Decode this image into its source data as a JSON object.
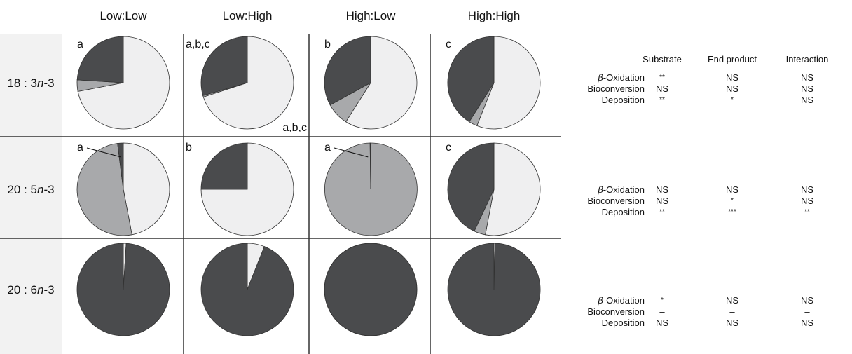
{
  "chart_data": {
    "type": "pie",
    "colors": {
      "dark": "#4a4b4d",
      "mid": "#a8a9ab",
      "light": "#efeff0",
      "line": "#333333"
    },
    "columns": [
      "Low:Low",
      "Low:High",
      "High:Low",
      "High:High"
    ],
    "rows": [
      {
        "label_pre": "18 : 3",
        "label_em": "n",
        "label_post": "-3",
        "pies": [
          {
            "letter": "a",
            "values": {
              "light": 72,
              "mid": 4,
              "dark": 24
            }
          },
          {
            "letter": "a,b,c",
            "extra_letter": "a,b,c",
            "values": {
              "light": 70,
              "mid": 0.5,
              "dark": 29.5
            }
          },
          {
            "letter": "b",
            "values": {
              "light": 59,
              "mid": 8,
              "dark": 33
            }
          },
          {
            "letter": "c",
            "values": {
              "light": 56,
              "mid": 3,
              "dark": 41
            }
          }
        ]
      },
      {
        "label_pre": "20 : 5",
        "label_em": "n",
        "label_post": "-3",
        "pies": [
          {
            "letter": "a",
            "leader": true,
            "values": {
              "light": 47,
              "mid": 51,
              "dark": 2
            }
          },
          {
            "letter": "b",
            "values": {
              "light": 75,
              "mid": 0,
              "dark": 25
            }
          },
          {
            "letter": "a",
            "leader": true,
            "values": {
              "light": 0,
              "mid": 99.8,
              "dark": 0.2
            }
          },
          {
            "letter": "c",
            "values": {
              "light": 53,
              "mid": 4,
              "dark": 43
            }
          }
        ]
      },
      {
        "label_pre": "20 : 6",
        "label_em": "n",
        "label_post": "-3",
        "pies": [
          {
            "letter": "",
            "values": {
              "light": 1,
              "mid": 0,
              "dark": 99
            }
          },
          {
            "letter": "",
            "values": {
              "light": 6,
              "mid": 0,
              "dark": 94
            }
          },
          {
            "letter": "",
            "values": {
              "light": 0,
              "mid": 0,
              "dark": 100
            }
          },
          {
            "letter": "",
            "values": {
              "light": 0.4,
              "mid": 0,
              "dark": 99.6
            }
          }
        ]
      }
    ]
  },
  "stats": {
    "headers": [
      "Substrate",
      "End product",
      "Interaction"
    ],
    "blocks": [
      [
        {
          "greek": "β",
          "label": "-Oxidation",
          "values": [
            "**",
            "NS",
            "NS"
          ]
        },
        {
          "greek": "",
          "label": "Bioconversion",
          "values": [
            "NS",
            "NS",
            "NS"
          ]
        },
        {
          "greek": "",
          "label": "Deposition",
          "values": [
            "**",
            "*",
            "NS"
          ]
        }
      ],
      [
        {
          "greek": "β",
          "label": "-Oxidation",
          "values": [
            "NS",
            "NS",
            "NS"
          ]
        },
        {
          "greek": "",
          "label": "Bioconversion",
          "values": [
            "NS",
            "*",
            "NS"
          ]
        },
        {
          "greek": "",
          "label": "Deposition",
          "values": [
            "**",
            "***",
            "**"
          ]
        }
      ],
      [
        {
          "greek": "β",
          "label": "-Oxidation",
          "values": [
            "*",
            "NS",
            "NS"
          ]
        },
        {
          "greek": "",
          "label": "Bioconversion",
          "values": [
            "–",
            "–",
            "–"
          ]
        },
        {
          "greek": "",
          "label": "Deposition",
          "values": [
            "NS",
            "NS",
            "NS"
          ]
        }
      ]
    ]
  }
}
